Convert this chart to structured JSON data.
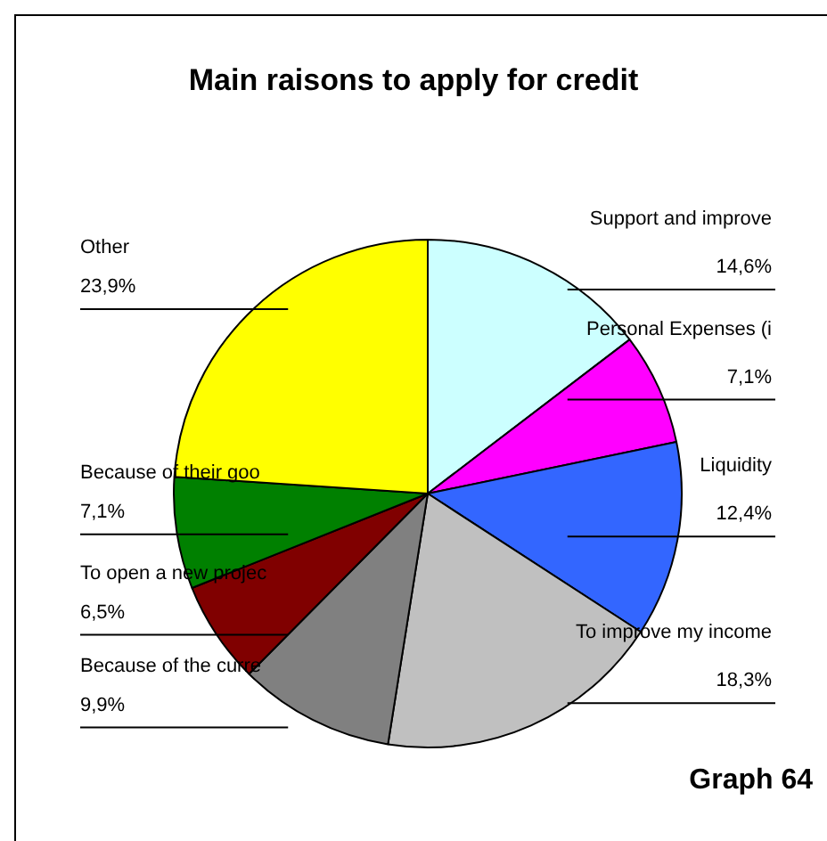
{
  "chart_data": {
    "type": "pie",
    "title": "Main raisons to apply for credit",
    "categories": [
      "Support and improve",
      "Personal Expenses (i",
      "Liquidity",
      "To improve my income",
      "Because of the curre",
      "To open a new projec",
      "Because of their goo",
      "Other"
    ],
    "values": [
      14.6,
      7.1,
      12.4,
      18.3,
      9.9,
      6.5,
      7.1,
      23.9
    ],
    "value_labels": [
      "14,6%",
      "7,1%",
      "12,4%",
      "18,3%",
      "9,9%",
      "6,5%",
      "7,1%",
      "23,9%"
    ],
    "colors": [
      "#ccffff",
      "#ff00ff",
      "#3366ff",
      "#c0c0c0",
      "#808080",
      "#800000",
      "#008000",
      "#ffff00"
    ],
    "annotations": [
      "Graph 64"
    ],
    "legend": false
  }
}
